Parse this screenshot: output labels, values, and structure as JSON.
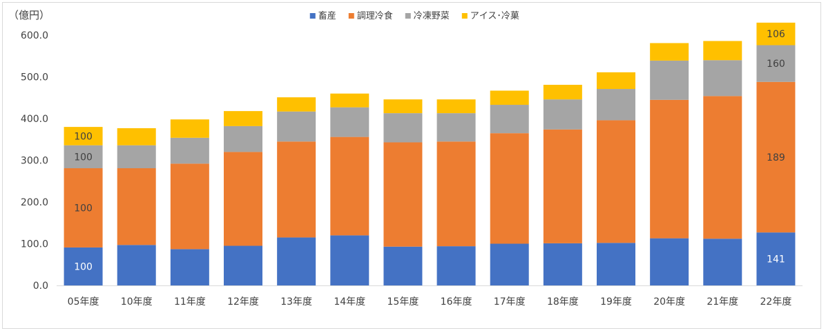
{
  "chart_data": {
    "type": "bar",
    "stacked": true,
    "unit_label": "（億円）",
    "categories": [
      "05年度",
      "10年度",
      "11年度",
      "12年度",
      "13年度",
      "14年度",
      "15年度",
      "16年度",
      "17年度",
      "18年度",
      "19年度",
      "20年度",
      "21年度",
      "22年度"
    ],
    "ylim": [
      0,
      600
    ],
    "yticks": [
      "0.0",
      "100.0",
      "200.0",
      "300.0",
      "400.0",
      "500.0",
      "600.0"
    ],
    "grid": false,
    "legend_position": "top-center",
    "series": [
      {
        "name": "畜産",
        "color": "#4472c4",
        "values": [
          91,
          97,
          87,
          95,
          115,
          120,
          93,
          94,
          100,
          101,
          102,
          113,
          112,
          127
        ]
      },
      {
        "name": "調理冷食",
        "color": "#ed7d31",
        "values": [
          190,
          184,
          205,
          225,
          230,
          236,
          250,
          251,
          265,
          273,
          294,
          332,
          342,
          361
        ]
      },
      {
        "name": "冷凍野菜",
        "color": "#a5a5a5",
        "values": [
          55,
          55,
          62,
          62,
          72,
          71,
          70,
          68,
          68,
          72,
          75,
          94,
          86,
          88
        ]
      },
      {
        "name": "アイス･冷菓",
        "color": "#ffc000",
        "values": [
          44,
          41,
          44,
          36,
          34,
          33,
          33,
          33,
          34,
          35,
          40,
          42,
          46,
          54
        ]
      }
    ],
    "data_labels": [
      {
        "category": 0,
        "series": 0,
        "text": "100",
        "color": "#ffffff"
      },
      {
        "category": 0,
        "series": 1,
        "text": "100",
        "color": "#404040"
      },
      {
        "category": 0,
        "series": 2,
        "text": "100",
        "color": "#404040"
      },
      {
        "category": 0,
        "series": 3,
        "text": "100",
        "color": "#404040"
      },
      {
        "category": 13,
        "series": 0,
        "text": "141",
        "color": "#ffffff"
      },
      {
        "category": 13,
        "series": 1,
        "text": "189",
        "color": "#404040"
      },
      {
        "category": 13,
        "series": 2,
        "text": "160",
        "color": "#404040"
      },
      {
        "category": 13,
        "series": 3,
        "text": "106",
        "color": "#404040"
      }
    ]
  }
}
